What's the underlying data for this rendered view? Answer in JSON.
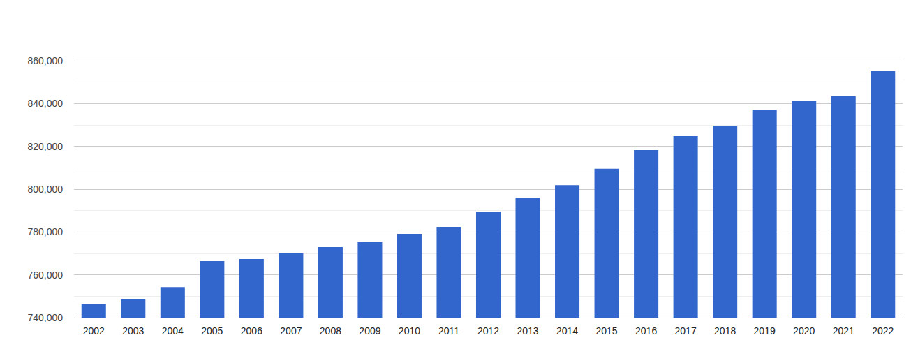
{
  "chart_data": {
    "type": "bar",
    "categories": [
      "2002",
      "2003",
      "2004",
      "2005",
      "2006",
      "2007",
      "2008",
      "2009",
      "2010",
      "2011",
      "2012",
      "2013",
      "2014",
      "2015",
      "2016",
      "2017",
      "2018",
      "2019",
      "2020",
      "2021",
      "2022"
    ],
    "values": [
      746200,
      748500,
      754300,
      766400,
      767400,
      770000,
      772900,
      775200,
      779100,
      782400,
      789600,
      796100,
      801900,
      809500,
      818300,
      824800,
      829700,
      837200,
      841400,
      843400,
      855100
    ],
    "color": "#3366cc",
    "ylim": [
      740000,
      860000
    ],
    "yticks": [
      {
        "value": 740000,
        "label": "740,000"
      },
      {
        "value": 760000,
        "label": "760,000"
      },
      {
        "value": 780000,
        "label": "780,000"
      },
      {
        "value": 800000,
        "label": "800,000"
      },
      {
        "value": 820000,
        "label": "820,000"
      },
      {
        "value": 840000,
        "label": "840,000"
      },
      {
        "value": 860000,
        "label": "860,000"
      }
    ],
    "grid": true
  }
}
